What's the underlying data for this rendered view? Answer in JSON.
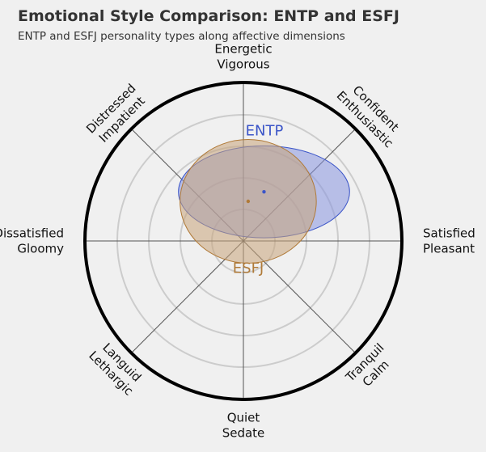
{
  "title": "Emotional Style Comparison: ENTP and ESFJ",
  "subtitle": "ENTP and ESFJ personality types along affective dimensions",
  "colors": {
    "background": "#f0f0f0",
    "grid": "#cccccc",
    "spoke": "#555555",
    "rim": "#000000"
  },
  "chart_data": {
    "type": "radar-ellipse",
    "grid_rings": 5,
    "grid": true,
    "axes": [
      {
        "id": "north",
        "angle": 90,
        "labels": [
          "Energetic",
          "Vigorous"
        ]
      },
      {
        "id": "north-east",
        "angle": 45,
        "labels": [
          "Confident",
          "Enthusiastic"
        ]
      },
      {
        "id": "east",
        "angle": 0,
        "labels": [
          "Satisfied",
          "Pleasant"
        ]
      },
      {
        "id": "south-east",
        "angle": -45,
        "labels": [
          "Tranquil",
          "Calm"
        ]
      },
      {
        "id": "south",
        "angle": -90,
        "labels": [
          "Quiet",
          "Sedate"
        ]
      },
      {
        "id": "south-west",
        "angle": -135,
        "labels": [
          "Languid",
          "Lethargic"
        ]
      },
      {
        "id": "west",
        "angle": 180,
        "labels": [
          "Dissatisfied",
          "Gloomy"
        ]
      },
      {
        "id": "north-west",
        "angle": 135,
        "labels": [
          "Distressed",
          "Impatient"
        ]
      }
    ],
    "series": [
      {
        "name": "ENTP",
        "center": [
          0.13,
          0.31
        ],
        "radii": [
          0.54,
          0.29
        ],
        "color": "#3b55c8",
        "fill": "#8896e0"
      },
      {
        "name": "ESFJ",
        "center": [
          0.03,
          0.25
        ],
        "radii": [
          0.43,
          0.39
        ],
        "color": "#b07a38",
        "fill": "#c8a47a"
      }
    ]
  }
}
